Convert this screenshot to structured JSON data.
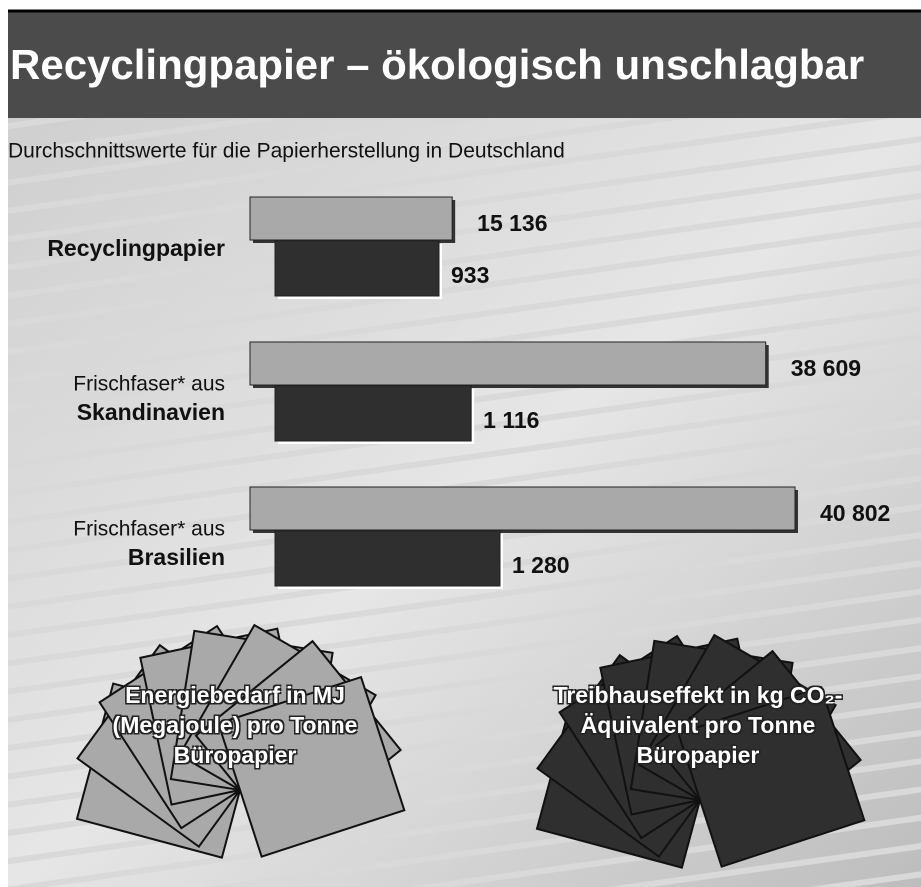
{
  "chart_data": {
    "type": "bar",
    "title": "Recyclingpapier – ökologisch unschlagbar",
    "subtitle": "Durchschnittswerte für die Papierherstellung in Deutschland",
    "categories": [
      "Recyclingpapier",
      "Skandinavien",
      "Brasilien"
    ],
    "category_notes": [
      null,
      "Frischfaser* aus",
      "Frischfaser* aus"
    ],
    "series": [
      {
        "name": "Energiebedarf in MJ (Megajoule) pro Tonne Büropapier",
        "color": "#a9a9a9",
        "values": [
          15136,
          38609,
          40802
        ],
        "value_labels": [
          "15 136",
          "38 609",
          "40 802"
        ]
      },
      {
        "name": "Treibhauseffekt in kg CO₂-Äquivalent pro Tonne Büropapier",
        "color": "#2f2f2f",
        "values": [
          933,
          1116,
          1280
        ],
        "value_labels": [
          "933",
          "1 116",
          "1 280"
        ]
      }
    ]
  }
}
